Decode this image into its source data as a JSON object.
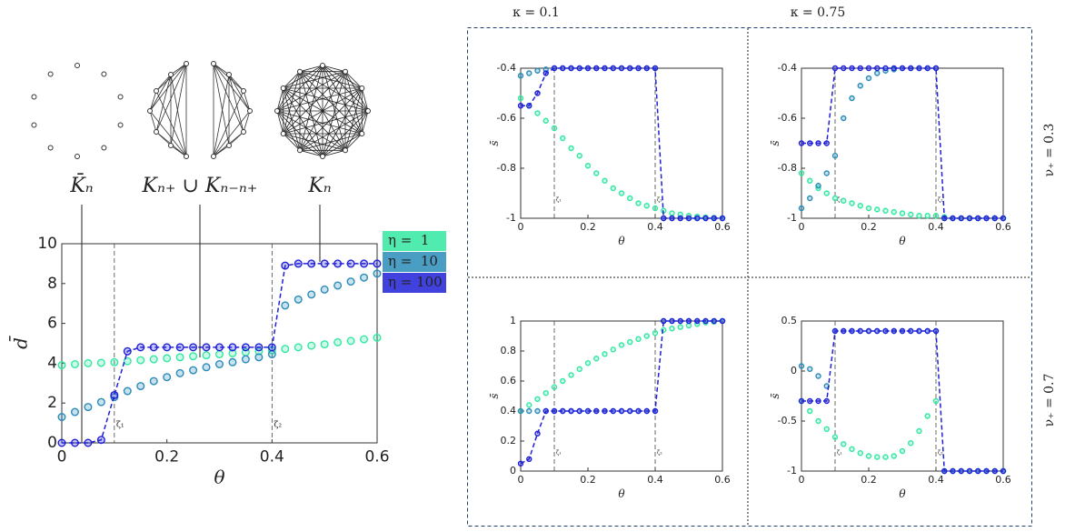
{
  "panel_labels": {
    "columns": [
      "κ = 0.1",
      "κ = 0.75"
    ],
    "rows": [
      "ν₊ = 0.3",
      "ν₊ = 0.7"
    ]
  },
  "chart_data": [
    {
      "type": "line",
      "x_label": "θ",
      "y_label": "d̄",
      "annotations": [
        "K̄ₙ",
        "Kₙ₊ ∪ Kₙ₋ₙ₊",
        "Kₙ"
      ],
      "vlines": [
        {
          "value": 0.1,
          "label": "ζ₁"
        },
        {
          "value": 0.4,
          "label": "ζ₂"
        }
      ],
      "xlim": [
        0,
        0.6
      ],
      "xticks": [
        0,
        0.2,
        0.4,
        0.6
      ],
      "ylim": [
        0,
        10
      ],
      "yticks": [
        0,
        2,
        4,
        6,
        8,
        10
      ],
      "legend": "outside-right",
      "x": [
        0,
        0.025,
        0.05,
        0.075,
        0.1,
        0.125,
        0.15,
        0.175,
        0.2,
        0.225,
        0.25,
        0.275,
        0.3,
        0.325,
        0.35,
        0.375,
        0.4,
        0.425,
        0.45,
        0.475,
        0.5,
        0.525,
        0.55,
        0.575,
        0.6
      ],
      "series": [
        {
          "name": "η =  1",
          "color": "#33e8a2",
          "linestyle": "none",
          "values": [
            3.9,
            3.95,
            4.0,
            4.02,
            4.05,
            4.1,
            4.15,
            4.2,
            4.25,
            4.3,
            4.35,
            4.4,
            4.45,
            4.5,
            4.55,
            4.6,
            4.65,
            4.72,
            4.8,
            4.88,
            4.95,
            5.05,
            5.12,
            5.2,
            5.28
          ]
        },
        {
          "name": "η =  10",
          "color": "#2a8cb8",
          "linestyle": "none",
          "values": [
            1.3,
            1.55,
            1.8,
            2.05,
            2.3,
            2.6,
            2.85,
            3.1,
            3.3,
            3.5,
            3.65,
            3.8,
            3.95,
            4.05,
            4.2,
            4.3,
            4.45,
            6.9,
            7.2,
            7.45,
            7.7,
            7.9,
            8.1,
            8.3,
            8.5
          ]
        },
        {
          "name": "η = 100",
          "color": "#2020d8",
          "linestyle": "dashed",
          "values": [
            0,
            0,
            0,
            0.15,
            2.4,
            4.6,
            4.8,
            4.8,
            4.8,
            4.8,
            4.8,
            4.8,
            4.8,
            4.8,
            4.8,
            4.8,
            4.8,
            8.9,
            9,
            9,
            9,
            9,
            9,
            9,
            9
          ]
        }
      ]
    },
    {
      "type": "line",
      "x_label": "θ",
      "y_label": "s̄",
      "vlines": [
        {
          "value": 0.1,
          "label": "ζ₁"
        },
        {
          "value": 0.4,
          "label": "ζ₂"
        }
      ],
      "xlim": [
        0,
        0.6
      ],
      "xticks": [
        0,
        0.2,
        0.4,
        0.6
      ],
      "ylim": [
        -1,
        -0.4
      ],
      "yticks": [
        -1,
        -0.8,
        -0.6,
        -0.4
      ],
      "x": [
        0,
        0.025,
        0.05,
        0.075,
        0.1,
        0.125,
        0.15,
        0.175,
        0.2,
        0.225,
        0.25,
        0.275,
        0.3,
        0.325,
        0.35,
        0.375,
        0.4,
        0.425,
        0.45,
        0.475,
        0.5,
        0.525,
        0.55,
        0.575,
        0.6
      ],
      "series": [
        {
          "color": "#33e8a2",
          "linestyle": "none",
          "values": [
            -0.52,
            -0.55,
            -0.58,
            -0.61,
            -0.64,
            -0.68,
            -0.72,
            -0.75,
            -0.79,
            -0.82,
            -0.85,
            -0.88,
            -0.9,
            -0.92,
            -0.94,
            -0.95,
            -0.96,
            -0.97,
            -0.98,
            -0.985,
            -0.99,
            -0.993,
            -0.996,
            -0.998,
            -1
          ]
        },
        {
          "color": "#2a8cb8",
          "linestyle": "none",
          "values": [
            -0.43,
            -0.42,
            -0.41,
            -0.405,
            -0.4,
            -0.4,
            -0.4,
            -0.4,
            -0.4,
            -0.4,
            -0.4,
            -0.4,
            -0.4,
            -0.4,
            -0.4,
            -0.4,
            -0.4,
            -1,
            -1,
            -1,
            -1,
            -1,
            -1,
            -1,
            -1
          ]
        },
        {
          "color": "#2020d8",
          "linestyle": "dashed",
          "values": [
            -0.55,
            -0.55,
            -0.5,
            -0.42,
            -0.4,
            -0.4,
            -0.4,
            -0.4,
            -0.4,
            -0.4,
            -0.4,
            -0.4,
            -0.4,
            -0.4,
            -0.4,
            -0.4,
            -0.4,
            -1,
            -1,
            -1,
            -1,
            -1,
            -1,
            -1,
            -1
          ]
        }
      ]
    },
    {
      "type": "line",
      "x_label": "θ",
      "y_label": "s̄",
      "vlines": [
        {
          "value": 0.1,
          "label": "ζ₁"
        },
        {
          "value": 0.4,
          "label": "ζ₂"
        }
      ],
      "xlim": [
        0,
        0.6
      ],
      "xticks": [
        0,
        0.2,
        0.4,
        0.6
      ],
      "ylim": [
        -1,
        -0.4
      ],
      "yticks": [
        -1,
        -0.8,
        -0.6,
        -0.4
      ],
      "x": [
        0,
        0.025,
        0.05,
        0.075,
        0.1,
        0.125,
        0.15,
        0.175,
        0.2,
        0.225,
        0.25,
        0.275,
        0.3,
        0.325,
        0.35,
        0.375,
        0.4,
        0.425,
        0.45,
        0.475,
        0.5,
        0.525,
        0.55,
        0.575,
        0.6
      ],
      "series": [
        {
          "color": "#33e8a2",
          "linestyle": "none",
          "values": [
            -0.82,
            -0.85,
            -0.88,
            -0.9,
            -0.92,
            -0.93,
            -0.94,
            -0.95,
            -0.96,
            -0.965,
            -0.97,
            -0.975,
            -0.98,
            -0.985,
            -0.99,
            -0.99,
            -0.99,
            -0.995,
            -1,
            -1,
            -1,
            -1,
            -1,
            -1,
            -1
          ]
        },
        {
          "color": "#2a8cb8",
          "linestyle": "none",
          "values": [
            -0.96,
            -0.92,
            -0.87,
            -0.82,
            -0.75,
            -0.6,
            -0.52,
            -0.47,
            -0.44,
            -0.42,
            -0.41,
            -0.405,
            -0.4,
            -0.4,
            -0.4,
            -0.4,
            -0.4,
            -1,
            -1,
            -1,
            -1,
            -1,
            -1,
            -1,
            -1
          ]
        },
        {
          "color": "#2020d8",
          "linestyle": "dashed",
          "values": [
            -0.7,
            -0.7,
            -0.7,
            -0.7,
            -0.4,
            -0.4,
            -0.4,
            -0.4,
            -0.4,
            -0.4,
            -0.4,
            -0.4,
            -0.4,
            -0.4,
            -0.4,
            -0.4,
            -0.4,
            -1,
            -1,
            -1,
            -1,
            -1,
            -1,
            -1,
            -1
          ]
        }
      ]
    },
    {
      "type": "line",
      "x_label": "θ",
      "y_label": "s̄",
      "vlines": [
        {
          "value": 0.1,
          "label": "ζ₁"
        },
        {
          "value": 0.4,
          "label": "ζ₂"
        }
      ],
      "xlim": [
        0,
        0.6
      ],
      "xticks": [
        0,
        0.2,
        0.4,
        0.6
      ],
      "ylim": [
        0,
        1
      ],
      "yticks": [
        0,
        0.2,
        0.4,
        0.6,
        0.8,
        1
      ],
      "x": [
        0,
        0.025,
        0.05,
        0.075,
        0.1,
        0.125,
        0.15,
        0.175,
        0.2,
        0.225,
        0.25,
        0.275,
        0.3,
        0.325,
        0.35,
        0.375,
        0.4,
        0.425,
        0.45,
        0.475,
        0.5,
        0.525,
        0.55,
        0.575,
        0.6
      ],
      "series": [
        {
          "color": "#33e8a2",
          "linestyle": "none",
          "values": [
            0.4,
            0.44,
            0.48,
            0.52,
            0.56,
            0.6,
            0.64,
            0.68,
            0.72,
            0.75,
            0.78,
            0.81,
            0.84,
            0.86,
            0.88,
            0.9,
            0.92,
            0.94,
            0.95,
            0.96,
            0.97,
            0.98,
            0.99,
            0.995,
            1
          ]
        },
        {
          "color": "#2a8cb8",
          "linestyle": "none",
          "values": [
            0.4,
            0.4,
            0.4,
            0.4,
            0.4,
            0.4,
            0.4,
            0.4,
            0.4,
            0.4,
            0.4,
            0.4,
            0.4,
            0.4,
            0.4,
            0.4,
            0.4,
            1,
            1,
            1,
            1,
            1,
            1,
            1,
            1
          ]
        },
        {
          "color": "#2020d8",
          "linestyle": "dashed",
          "values": [
            0.05,
            0.08,
            0.25,
            0.4,
            0.4,
            0.4,
            0.4,
            0.4,
            0.4,
            0.4,
            0.4,
            0.4,
            0.4,
            0.4,
            0.4,
            0.4,
            0.4,
            1,
            1,
            1,
            1,
            1,
            1,
            1,
            1
          ]
        }
      ]
    },
    {
      "type": "line",
      "x_label": "θ",
      "y_label": "s̄",
      "vlines": [
        {
          "value": 0.1,
          "label": "ζ₁"
        },
        {
          "value": 0.4,
          "label": "ζ₂"
        }
      ],
      "xlim": [
        0,
        0.6
      ],
      "xticks": [
        0,
        0.2,
        0.4,
        0.6
      ],
      "ylim": [
        -1,
        0.5
      ],
      "yticks": [
        -1,
        -0.5,
        0,
        0.5
      ],
      "x": [
        0,
        0.025,
        0.05,
        0.075,
        0.1,
        0.125,
        0.15,
        0.175,
        0.2,
        0.225,
        0.25,
        0.275,
        0.3,
        0.325,
        0.35,
        0.375,
        0.4,
        0.425,
        0.45,
        0.475,
        0.5,
        0.525,
        0.55,
        0.575,
        0.6
      ],
      "series": [
        {
          "color": "#33e8a2",
          "linestyle": "none",
          "values": [
            -0.3,
            -0.4,
            -0.5,
            -0.58,
            -0.66,
            -0.73,
            -0.78,
            -0.82,
            -0.85,
            -0.86,
            -0.86,
            -0.85,
            -0.8,
            -0.72,
            -0.6,
            -0.45,
            -0.3,
            -1,
            -1,
            -1,
            -1,
            -1,
            -1,
            -1,
            -1
          ]
        },
        {
          "color": "#2a8cb8",
          "linestyle": "none",
          "values": [
            0.05,
            0.02,
            -0.05,
            -0.15,
            0.4,
            0.4,
            0.4,
            0.4,
            0.4,
            0.4,
            0.4,
            0.4,
            0.4,
            0.4,
            0.4,
            0.4,
            0.4,
            -1,
            -1,
            -1,
            -1,
            -1,
            -1,
            -1,
            -1
          ]
        },
        {
          "color": "#2020d8",
          "linestyle": "dashed",
          "values": [
            -0.3,
            -0.3,
            -0.3,
            -0.3,
            0.4,
            0.4,
            0.4,
            0.4,
            0.4,
            0.4,
            0.4,
            0.4,
            0.4,
            0.4,
            0.4,
            0.4,
            0.4,
            -1,
            -1,
            -1,
            -1,
            -1,
            -1,
            -1,
            -1
          ]
        }
      ]
    }
  ]
}
